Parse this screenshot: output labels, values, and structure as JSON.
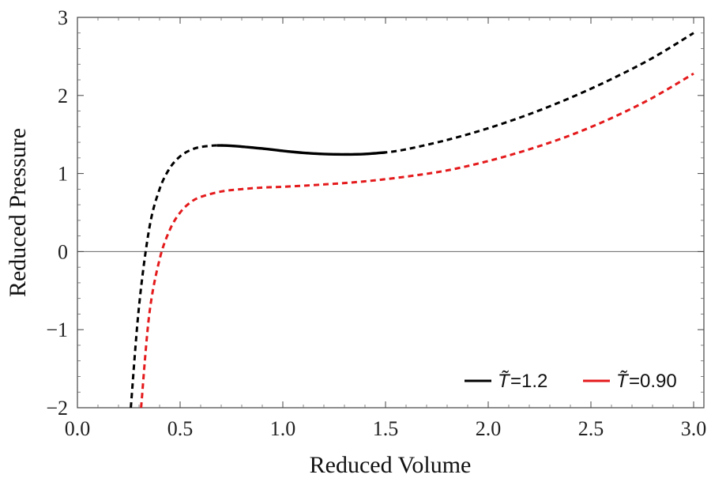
{
  "chart_data": {
    "type": "line",
    "title": "",
    "xlabel": "Reduced Volume",
    "ylabel": "Reduced Pressure",
    "xlim": [
      0,
      3.05
    ],
    "ylim": [
      -2,
      3
    ],
    "xticks": [
      0.0,
      0.5,
      1.0,
      1.5,
      2.0,
      2.5,
      3.0
    ],
    "xtick_labels": [
      "0.0",
      "0.5",
      "1.0",
      "1.5",
      "2.0",
      "2.5",
      "3.0"
    ],
    "yticks": [
      -2,
      -1,
      0,
      1,
      2,
      3
    ],
    "ytick_labels": [
      "−2",
      "−1",
      "0",
      "1",
      "2",
      "3"
    ],
    "grid": false,
    "zero_line": true,
    "legend_position": "bottom-right",
    "series": [
      {
        "name": "T̃=1.2",
        "legend_label": "=1.2",
        "legend_symbol": "T̃",
        "color": "#000000",
        "x": [
          0.26,
          0.3,
          0.35,
          0.4,
          0.45,
          0.5,
          0.55,
          0.6,
          0.68,
          0.75,
          0.9,
          1.0,
          1.1,
          1.2,
          1.3,
          1.4,
          1.5,
          1.6,
          1.8,
          2.0,
          2.2,
          2.4,
          2.6,
          2.8,
          3.0
        ],
        "y": [
          -2.0,
          -0.7,
          0.3,
          0.8,
          1.07,
          1.22,
          1.3,
          1.34,
          1.36,
          1.355,
          1.32,
          1.29,
          1.265,
          1.25,
          1.245,
          1.25,
          1.27,
          1.31,
          1.43,
          1.58,
          1.76,
          1.97,
          2.21,
          2.48,
          2.8
        ],
        "solid_range": [
          0.68,
          1.52
        ]
      },
      {
        "name": "T̃=0.90",
        "legend_label": "=0.90",
        "legend_symbol": "T̃",
        "color": "#e41a1c",
        "x": [
          0.31,
          0.35,
          0.4,
          0.45,
          0.5,
          0.55,
          0.6,
          0.7,
          0.8,
          0.9,
          1.0,
          1.2,
          1.4,
          1.6,
          1.8,
          2.0,
          2.2,
          2.4,
          2.6,
          2.8,
          3.0
        ],
        "y": [
          -2.0,
          -0.8,
          -0.1,
          0.28,
          0.5,
          0.63,
          0.7,
          0.77,
          0.8,
          0.82,
          0.83,
          0.86,
          0.9,
          0.96,
          1.04,
          1.16,
          1.31,
          1.49,
          1.71,
          1.97,
          2.28
        ],
        "solid_range": null
      }
    ]
  }
}
